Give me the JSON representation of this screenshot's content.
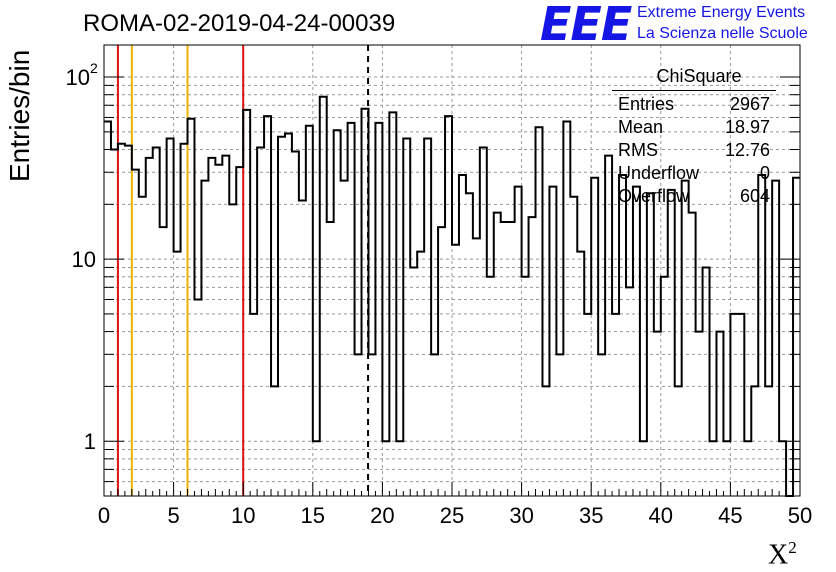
{
  "title": "ROMA-02-2019-04-24-00039",
  "logo": {
    "mark": "EEE",
    "line1": "Extreme Energy Events",
    "line2": "La Scienza nelle Scuole",
    "color": "#1515e6"
  },
  "axes": {
    "ylabel": "Entries/bin",
    "xlabel": "X",
    "xlabel_sup": "2"
  },
  "stats": {
    "title": "ChiSquare",
    "rows": [
      {
        "key": "Entries",
        "value": "2967"
      },
      {
        "key": "Mean",
        "value": "18.97"
      },
      {
        "key": "RMS",
        "value": "12.76"
      },
      {
        "key": "Underflow",
        "value": "0"
      },
      {
        "key": "Overflow",
        "value": "604"
      }
    ]
  },
  "colors": {
    "histogram": "#000000",
    "red_lines": "#dd1111",
    "yellow_lines": "#f0b400",
    "grid": "#999999"
  },
  "chart_data": {
    "type": "bar",
    "bin_width": 0.5,
    "x_start": 0,
    "xlim": [
      0,
      50
    ],
    "ylim": [
      0.5,
      150
    ],
    "ylog": true,
    "grid": true,
    "x_ticks": [
      "0",
      "5",
      "10",
      "15",
      "20",
      "25",
      "30",
      "35",
      "40",
      "45",
      "50"
    ],
    "y_ticks": [
      {
        "value": 1,
        "label": "1"
      },
      {
        "value": 10,
        "label": "10"
      },
      {
        "value": 100,
        "label": "10",
        "sup": "2"
      }
    ],
    "values": [
      57,
      40,
      43,
      42,
      31,
      22,
      36,
      41,
      15,
      46,
      11,
      43,
      59,
      6,
      27,
      36,
      33,
      37,
      20,
      32,
      66,
      5,
      41,
      61,
      2,
      47,
      49,
      39,
      21,
      54,
      1,
      78,
      16,
      51,
      27,
      56,
      3,
      67,
      3,
      56,
      1,
      64,
      1,
      46,
      9,
      11,
      46,
      3,
      15,
      61,
      12,
      29,
      23,
      13,
      41,
      8,
      18,
      16,
      16,
      25,
      8,
      17,
      53,
      2,
      25,
      3,
      57,
      22,
      11,
      5,
      28,
      3,
      37,
      5,
      29,
      7,
      25,
      1,
      23,
      4,
      8,
      24,
      2,
      27,
      18,
      4,
      9,
      1,
      4,
      1,
      5,
      5,
      1,
      2,
      29,
      2,
      27,
      1,
      0.5,
      28
    ],
    "vertical_lines": [
      {
        "x": 1,
        "color": "red"
      },
      {
        "x": 2,
        "color": "yellow"
      },
      {
        "x": 6,
        "color": "yellow"
      },
      {
        "x": 10,
        "color": "red"
      }
    ],
    "mean_line": {
      "x": 18.97,
      "style": "dashed"
    }
  }
}
